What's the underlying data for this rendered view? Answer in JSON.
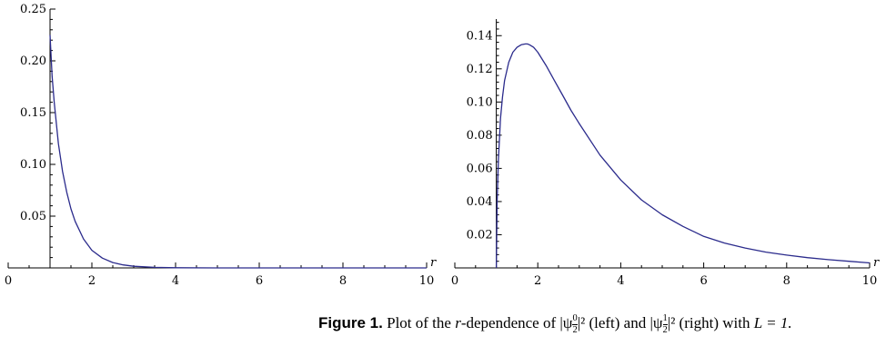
{
  "caption": {
    "label": "Figure 1.",
    "text_a": "Plot of the",
    "text_b": "-dependence of |ψ",
    "text_c": "|² (left) and |ψ",
    "text_d": "|² (right) with",
    "text_e": "L = 1."
  },
  "chart_data": [
    {
      "type": "line",
      "title": "",
      "xlabel": "r",
      "ylabel": "",
      "xlim": [
        0,
        10
      ],
      "ylim": [
        0,
        0.25
      ],
      "xticks": [
        0,
        2,
        4,
        6,
        8,
        10
      ],
      "yticks": [
        0.05,
        0.1,
        0.15,
        0.2,
        0.25
      ],
      "xtick_labels": [
        "0",
        "2",
        "4",
        "6",
        "8",
        "10"
      ],
      "ytick_labels": [
        "0.05",
        "0.10",
        "0.15",
        "0.20",
        "0.25"
      ],
      "series": [
        {
          "color": "#2b2b8c",
          "x": [
            1.0,
            1.05,
            1.1,
            1.2,
            1.3,
            1.4,
            1.5,
            1.6,
            1.8,
            2.0,
            2.25,
            2.5,
            2.75,
            3.0,
            3.5,
            4.0,
            5.0,
            6.0,
            7.0,
            8.0,
            9.0,
            10.0
          ],
          "y": [
            0.225,
            0.185,
            0.16,
            0.12,
            0.093,
            0.073,
            0.057,
            0.045,
            0.028,
            0.017,
            0.0095,
            0.0052,
            0.0029,
            0.0016,
            0.0005,
            0.00016,
            2e-05,
            0.0,
            0.0,
            0.0,
            0.0,
            0.0
          ]
        }
      ]
    },
    {
      "type": "line",
      "title": "",
      "xlabel": "r",
      "ylabel": "",
      "xlim": [
        0,
        10
      ],
      "ylim": [
        0,
        0.15
      ],
      "xticks": [
        0,
        2,
        4,
        6,
        8,
        10
      ],
      "yticks": [
        0.02,
        0.04,
        0.06,
        0.08,
        0.1,
        0.12,
        0.14
      ],
      "xtick_labels": [
        "0",
        "2",
        "4",
        "6",
        "8",
        "10"
      ],
      "ytick_labels": [
        "0.02",
        "0.04",
        "0.06",
        "0.08",
        "0.10",
        "0.12",
        "0.14"
      ],
      "series": [
        {
          "color": "#2b2b8c",
          "x": [
            1.0,
            1.02,
            1.05,
            1.1,
            1.15,
            1.2,
            1.3,
            1.4,
            1.5,
            1.6,
            1.7,
            1.75,
            1.8,
            1.9,
            2.0,
            2.2,
            2.4,
            2.6,
            2.8,
            3.0,
            3.5,
            4.0,
            4.5,
            5.0,
            5.5,
            6.0,
            6.5,
            7.0,
            7.5,
            8.0,
            8.5,
            9.0,
            9.5,
            10.0
          ],
          "y": [
            0.0,
            0.04,
            0.065,
            0.09,
            0.103,
            0.113,
            0.124,
            0.13,
            0.133,
            0.1345,
            0.135,
            0.135,
            0.1345,
            0.133,
            0.13,
            0.122,
            0.113,
            0.104,
            0.095,
            0.087,
            0.068,
            0.053,
            0.041,
            0.032,
            0.025,
            0.019,
            0.015,
            0.012,
            0.0095,
            0.0077,
            0.0062,
            0.005,
            0.004,
            0.003
          ]
        }
      ]
    }
  ]
}
